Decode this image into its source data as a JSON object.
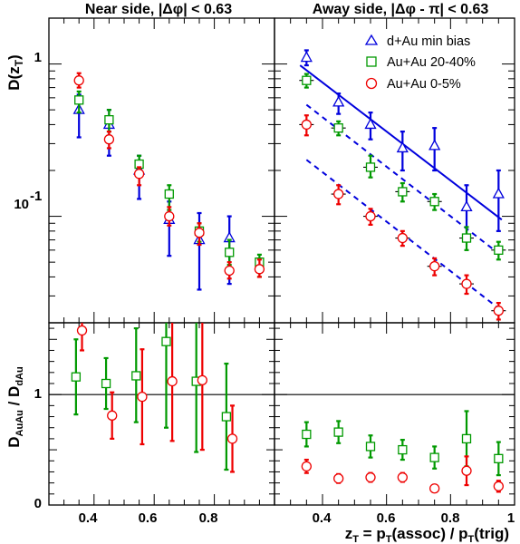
{
  "colors": {
    "dAu": "#0000dd",
    "AuAu2040": "#009900",
    "AuAu05": "#ee0000",
    "fit": "#0000dd"
  },
  "panels": {
    "near_title": "Near side, |Δφ| < 0.63",
    "away_title": "Away side, |Δφ - π| < 0.63"
  },
  "axes": {
    "ylabel_top_main": "D(z",
    "ylabel_top_sub": "T",
    "ylabel_top_end": ")",
    "ylabel_bottom_main": "D",
    "ylabel_bottom_sub1": "AuAu",
    "ylabel_bottom_mid": " / D",
    "ylabel_bottom_sub2": "dAu",
    "xlabel_z": "z",
    "xlabel_zsub": "T",
    "xlabel_eq": " = p",
    "xlabel_assoc": "(assoc) / p",
    "xlabel_trig": "(trig)",
    "ytick_1": "1",
    "ytick_01_base": "10",
    "ytick_01_exp": "-1",
    "ratio_ticks": [
      "0",
      "1"
    ],
    "x_ticks": [
      "0.4",
      "0.6",
      "0.8",
      "1"
    ]
  },
  "legend": [
    {
      "label": "d+Au min bias",
      "marker": "triangle",
      "color": "#0000dd"
    },
    {
      "label": "Au+Au 20-40%",
      "marker": "square",
      "color": "#009900"
    },
    {
      "label": "Au+Au 0-5%",
      "marker": "circle",
      "color": "#ee0000"
    }
  ],
  "chart_data": [
    {
      "panel": "near-D",
      "type": "scatter",
      "title": "Near side, |Δφ| < 0.63",
      "xlim": [
        0.25,
        1.0
      ],
      "ylim": [
        0.02,
        2.0
      ],
      "yscale": "log",
      "series": [
        {
          "name": "d+Au min bias",
          "marker": "triangle",
          "color": "#0000dd",
          "x": [
            0.35,
            0.45,
            0.55,
            0.65,
            0.75,
            0.85
          ],
          "y": [
            0.5,
            0.4,
            0.2,
            0.095,
            0.07,
            0.072
          ],
          "ylo": [
            0.33,
            0.25,
            0.13,
            0.055,
            0.033,
            0.036
          ],
          "yhi": [
            0.63,
            0.5,
            0.25,
            0.125,
            0.105,
            0.1
          ]
        },
        {
          "name": "Au+Au 20-40%",
          "marker": "square",
          "color": "#009900",
          "x": [
            0.35,
            0.45,
            0.55,
            0.65,
            0.75,
            0.85,
            0.95
          ],
          "y": [
            0.58,
            0.43,
            0.22,
            0.14,
            0.08,
            0.058,
            0.05
          ],
          "ylo": [
            0.48,
            0.36,
            0.18,
            0.11,
            0.068,
            0.048,
            0.04
          ],
          "yhi": [
            0.66,
            0.5,
            0.25,
            0.16,
            0.09,
            0.07,
            0.056
          ]
        },
        {
          "name": "Au+Au 0-5%",
          "marker": "circle",
          "color": "#ee0000",
          "x": [
            0.35,
            0.45,
            0.55,
            0.65,
            0.75,
            0.85,
            0.95
          ],
          "y": [
            0.78,
            0.32,
            0.19,
            0.1,
            0.078,
            0.044,
            0.045
          ],
          "ylo": [
            0.7,
            0.28,
            0.16,
            0.087,
            0.065,
            0.039,
            0.04
          ],
          "yhi": [
            0.87,
            0.36,
            0.21,
            0.115,
            0.09,
            0.05,
            0.052
          ]
        }
      ]
    },
    {
      "panel": "away-D",
      "type": "scatter",
      "title": "Away side, |Δφ - π| < 0.63",
      "xlim": [
        0.25,
        1.0
      ],
      "ylim": [
        0.02,
        2.0
      ],
      "yscale": "log",
      "series": [
        {
          "name": "d+Au min bias",
          "marker": "triangle",
          "color": "#0000dd",
          "x": [
            0.35,
            0.45,
            0.55,
            0.65,
            0.75,
            0.85,
            0.95
          ],
          "y": [
            1.1,
            0.56,
            0.4,
            0.28,
            0.29,
            0.115,
            0.14
          ],
          "ylo": [
            0.98,
            0.47,
            0.32,
            0.2,
            0.2,
            0.075,
            0.08
          ],
          "yhi": [
            1.23,
            0.64,
            0.48,
            0.36,
            0.38,
            0.16,
            0.2
          ]
        },
        {
          "name": "Au+Au 20-40%",
          "marker": "square",
          "color": "#009900",
          "x": [
            0.35,
            0.45,
            0.55,
            0.65,
            0.75,
            0.85,
            0.95
          ],
          "y": [
            0.78,
            0.38,
            0.21,
            0.145,
            0.125,
            0.072,
            0.06
          ],
          "ylo": [
            0.7,
            0.34,
            0.18,
            0.125,
            0.11,
            0.06,
            0.052
          ],
          "yhi": [
            0.86,
            0.42,
            0.25,
            0.165,
            0.14,
            0.085,
            0.068
          ]
        },
        {
          "name": "Au+Au 0-5%",
          "marker": "circle",
          "color": "#ee0000",
          "x": [
            0.35,
            0.45,
            0.55,
            0.65,
            0.75,
            0.85,
            0.95
          ],
          "y": [
            0.4,
            0.14,
            0.1,
            0.072,
            0.047,
            0.036,
            0.024
          ],
          "ylo": [
            0.34,
            0.12,
            0.088,
            0.064,
            0.041,
            0.031,
            0.021
          ],
          "yhi": [
            0.46,
            0.16,
            0.112,
            0.08,
            0.053,
            0.041,
            0.027
          ]
        }
      ],
      "fits": [
        {
          "style": "solid",
          "x": [
            0.33,
            0.96
          ],
          "y": [
            0.98,
            0.095
          ]
        },
        {
          "style": "dashed",
          "x": [
            0.35,
            0.96
          ],
          "y": [
            0.54,
            0.055
          ]
        },
        {
          "style": "dashed",
          "x": [
            0.35,
            0.96
          ],
          "y": [
            0.235,
            0.024
          ]
        }
      ]
    },
    {
      "panel": "near-ratio",
      "type": "scatter",
      "xlim": [
        0.25,
        1.0
      ],
      "ylim": [
        0,
        1.65
      ],
      "series": [
        {
          "name": "Au+Au 20-40%",
          "marker": "square",
          "color": "#009900",
          "x": [
            0.34,
            0.44,
            0.54,
            0.64,
            0.74,
            0.84
          ],
          "y": [
            1.16,
            1.1,
            1.17,
            1.48,
            1.12,
            0.8
          ],
          "ylo": [
            0.82,
            0.87,
            0.75,
            0.7,
            0.48,
            0.32
          ],
          "yhi": [
            1.5,
            1.33,
            1.6,
            1.65,
            1.65,
            1.28
          ]
        },
        {
          "name": "Au+Au 0-5%",
          "marker": "circle",
          "color": "#ee0000",
          "x": [
            0.36,
            0.46,
            0.56,
            0.66,
            0.76,
            0.86
          ],
          "y": [
            1.58,
            0.81,
            0.98,
            1.12,
            1.13,
            0.6
          ],
          "ylo": [
            1.4,
            0.6,
            0.55,
            0.58,
            0.5,
            0.3
          ],
          "yhi": [
            1.65,
            1.02,
            1.41,
            1.65,
            1.65,
            0.9
          ]
        }
      ]
    },
    {
      "panel": "away-ratio",
      "type": "scatter",
      "xlabel": "z_T = p_T(assoc) / p_T(trig)",
      "xlim": [
        0.25,
        1.0
      ],
      "ylim": [
        0,
        1.65
      ],
      "series": [
        {
          "name": "Au+Au 20-40%",
          "marker": "square",
          "color": "#009900",
          "x": [
            0.35,
            0.45,
            0.55,
            0.65,
            0.75,
            0.85,
            0.95
          ],
          "y": [
            0.64,
            0.66,
            0.53,
            0.5,
            0.43,
            0.6,
            0.42
          ],
          "ylo": [
            0.53,
            0.56,
            0.43,
            0.41,
            0.33,
            0.35,
            0.27
          ],
          "yhi": [
            0.75,
            0.76,
            0.63,
            0.59,
            0.53,
            0.85,
            0.57
          ]
        },
        {
          "name": "Au+Au 0-5%",
          "marker": "circle",
          "color": "#ee0000",
          "x": [
            0.35,
            0.45,
            0.55,
            0.65,
            0.75,
            0.85,
            0.95
          ],
          "y": [
            0.35,
            0.24,
            0.25,
            0.25,
            0.15,
            0.31,
            0.17
          ],
          "ylo": [
            0.29,
            0.2,
            0.21,
            0.21,
            0.12,
            0.18,
            0.12
          ],
          "yhi": [
            0.41,
            0.28,
            0.29,
            0.29,
            0.18,
            0.44,
            0.22
          ]
        }
      ]
    }
  ]
}
